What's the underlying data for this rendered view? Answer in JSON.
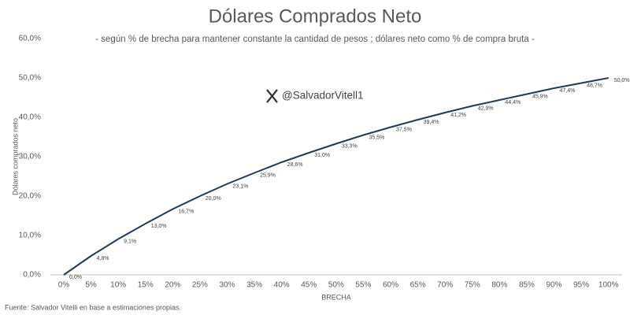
{
  "chart_data": {
    "type": "line",
    "title": "Dólares Comprados Neto",
    "subtitle": "- según % de brecha para mantener constante la cantidad de pesos ; dólares neto como % de compra bruta -",
    "y_label": "Dólares comprados neto",
    "x_label": "BRECHA",
    "watermark": "@SalvadorVitell1",
    "source": "Fuente:  Salvador Vitelli en base a estimaciones propias.",
    "categories": [
      "0%",
      "5%",
      "10%",
      "15%",
      "20%",
      "25%",
      "30%",
      "35%",
      "40%",
      "45%",
      "50%",
      "55%",
      "60%",
      "65%",
      "70%",
      "75%",
      "80%",
      "85%",
      "90%",
      "95%",
      "100%"
    ],
    "series": [
      {
        "name": "Dólares comprados neto",
        "color": "#1f3b57",
        "values": [
          0.0,
          4.8,
          9.1,
          13.0,
          16.7,
          20.0,
          23.1,
          25.9,
          28.6,
          31.0,
          33.3,
          35.5,
          37.5,
          39.4,
          41.2,
          42.9,
          44.4,
          45.9,
          47.4,
          48.7,
          50.0
        ],
        "value_labels": [
          "0,0%",
          "4,8%",
          "9,1%",
          "13,0%",
          "16,7%",
          "20,0%",
          "23,1%",
          "25,9%",
          "28,6%",
          "31,0%",
          "33,3%",
          "35,5%",
          "37,5%",
          "39,4%",
          "41,2%",
          "42,9%",
          "44,4%",
          "45,9%",
          "47,4%",
          "48,7%",
          "50,0%"
        ]
      }
    ],
    "ylim": [
      0,
      60
    ],
    "yticks": [
      {
        "value": 0,
        "label": "0,0%"
      },
      {
        "value": 10,
        "label": "10,0%"
      },
      {
        "value": 20,
        "label": "20,0%"
      },
      {
        "value": 30,
        "label": "30,0%"
      },
      {
        "value": 40,
        "label": "40,0%"
      },
      {
        "value": 50,
        "label": "50,0%"
      },
      {
        "value": 60,
        "label": "60,0%"
      }
    ],
    "grid": false
  }
}
